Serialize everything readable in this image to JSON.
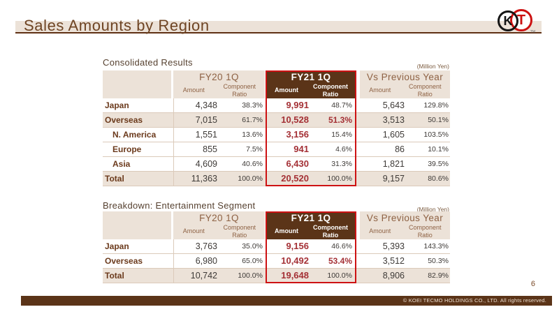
{
  "header": {
    "title": "Sales Amounts by Region",
    "logo": {
      "k": "K",
      "t": "T",
      "tm": "TM"
    }
  },
  "column_groups": {
    "fy20": {
      "label": "FY20 1Q",
      "amount": "Amount",
      "ratio": "Component Ratio"
    },
    "fy21": {
      "label": "FY21 1Q",
      "amount": "Amount",
      "ratio": "Component Ratio"
    },
    "vs_prev": {
      "label": "Vs Previous Year",
      "amount": "Amount",
      "ratio": "Component Ratio"
    }
  },
  "consolidated": {
    "title": "Consolidated Results",
    "unit": "(Million Yen)",
    "rows": [
      {
        "label": "Japan",
        "fy20_amount": "4,348",
        "fy20_ratio": "38.3%",
        "fy21_amount": "9,991",
        "fy21_ratio": "48.7%",
        "vs_amount": "5,643",
        "vs_ratio": "129.8%"
      },
      {
        "label": "Overseas",
        "fy20_amount": "7,015",
        "fy20_ratio": "61.7%",
        "fy21_amount": "10,528",
        "fy21_ratio": "51.3%",
        "vs_amount": "3,513",
        "vs_ratio": "50.1%"
      },
      {
        "label": "N. America",
        "fy20_amount": "1,551",
        "fy20_ratio": "13.6%",
        "fy21_amount": "3,156",
        "fy21_ratio": "15.4%",
        "vs_amount": "1,605",
        "vs_ratio": "103.5%"
      },
      {
        "label": "Europe",
        "fy20_amount": "855",
        "fy20_ratio": "7.5%",
        "fy21_amount": "941",
        "fy21_ratio": "4.6%",
        "vs_amount": "86",
        "vs_ratio": "10.1%"
      },
      {
        "label": "Asia",
        "fy20_amount": "4,609",
        "fy20_ratio": "40.6%",
        "fy21_amount": "6,430",
        "fy21_ratio": "31.3%",
        "vs_amount": "1,821",
        "vs_ratio": "39.5%"
      },
      {
        "label": "Total",
        "fy20_amount": "11,363",
        "fy20_ratio": "100.0%",
        "fy21_amount": "20,520",
        "fy21_ratio": "100.0%",
        "vs_amount": "9,157",
        "vs_ratio": "80.6%"
      }
    ]
  },
  "entertainment": {
    "title": "Breakdown: Entertainment Segment",
    "unit": "(Million Yen)",
    "rows": [
      {
        "label": "Japan",
        "fy20_amount": "3,763",
        "fy20_ratio": "35.0%",
        "fy21_amount": "9,156",
        "fy21_ratio": "46.6%",
        "vs_amount": "5,393",
        "vs_ratio": "143.3%"
      },
      {
        "label": "Overseas",
        "fy20_amount": "6,980",
        "fy20_ratio": "65.0%",
        "fy21_amount": "10,492",
        "fy21_ratio": "53.4%",
        "vs_amount": "3,512",
        "vs_ratio": "50.3%"
      },
      {
        "label": "Total",
        "fy20_amount": "10,742",
        "fy20_ratio": "100.0%",
        "fy21_amount": "19,648",
        "fy21_ratio": "100.0%",
        "vs_amount": "8,906",
        "vs_ratio": "82.9%"
      }
    ]
  },
  "footer": {
    "page_number": "6",
    "copyright": "© KOEI TECMO HOLDINGS CO., LTD. All rights reserved."
  },
  "colors": {
    "accent_brown": "#5b3418",
    "accent_red": "#cd1213",
    "value_red": "#a43035",
    "beige": "#ece2d8"
  }
}
